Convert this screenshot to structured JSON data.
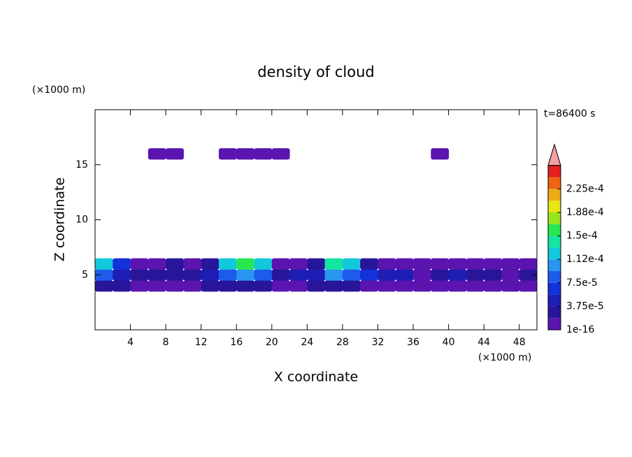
{
  "chart_data": {
    "type": "contourf",
    "title": "density of cloud",
    "x_label": "X coordinate",
    "y_label": "Z coordinate",
    "x_unit": "(×1000 m)",
    "y_unit": "(×1000 m)",
    "time_label": "t=86400 s",
    "xlim": [
      0,
      50
    ],
    "ylim": [
      0,
      20
    ],
    "xticks": [
      4,
      8,
      12,
      16,
      20,
      24,
      28,
      32,
      36,
      40,
      44,
      48
    ],
    "yticks": [
      5,
      10,
      15
    ],
    "x": [
      1,
      3,
      5,
      7,
      9,
      11,
      13,
      15,
      17,
      19,
      21,
      23,
      25,
      27,
      29,
      31,
      33,
      35,
      37,
      39,
      41,
      43,
      45,
      47,
      49
    ],
    "y": [
      4,
      5,
      6,
      16
    ],
    "z": [
      [
        3e-05,
        2e-05,
        1e-05,
        1e-05,
        1e-05,
        1e-05,
        2e-05,
        3e-05,
        3e-05,
        2e-05,
        1e-05,
        1e-05,
        2e-05,
        3e-05,
        2e-05,
        1e-05,
        1e-05,
        1e-05,
        5e-06,
        1e-05,
        1e-05,
        1e-05,
        1e-05,
        1e-05,
        1e-05
      ],
      [
        8e-05,
        5e-05,
        2e-05,
        3e-05,
        2e-05,
        2e-05,
        5e-05,
        9e-05,
        0.0001,
        8e-05,
        3e-05,
        4e-05,
        5e-05,
        0.0001,
        9e-05,
        6e-05,
        4e-05,
        5e-05,
        1e-05,
        2e-05,
        4e-05,
        3e-05,
        2e-05,
        1e-05,
        3e-05
      ],
      [
        0.00013,
        6e-05,
        1e-05,
        1e-05,
        2e-05,
        1e-05,
        3e-05,
        0.00013,
        0.00015,
        0.00012,
        1e-05,
        1e-05,
        2e-05,
        0.00014,
        0.00013,
        3e-05,
        1e-05,
        5e-06,
        1e-06,
        1e-06,
        1e-05,
        1e-05,
        5e-06,
        5e-06,
        5e-06
      ],
      [
        null,
        null,
        null,
        5e-06,
        5e-06,
        null,
        null,
        5e-06,
        5e-06,
        5e-06,
        5e-06,
        null,
        null,
        null,
        null,
        null,
        null,
        null,
        null,
        5e-06,
        null,
        null,
        null,
        null,
        null
      ]
    ],
    "levels": [
      1e-16,
      1.875e-05,
      3.75e-05,
      5.625e-05,
      7.5e-05,
      9.375e-05,
      0.0001125,
      0.00013125,
      0.00015,
      0.00016875,
      0.0001875,
      0.00020625,
      0.000225,
      0.00024375
    ],
    "colors": [
      "#5b14b0",
      "#28169a",
      "#1e1eb4",
      "#1432dc",
      "#1e5aeb",
      "#2896f0",
      "#14c8dc",
      "#14e6a0",
      "#28e650",
      "#96e61e",
      "#e6e614",
      "#f0aa14",
      "#f06414",
      "#e61e1e"
    ],
    "extend_color": "#f4a0a0",
    "colorbar_ticks": [
      {
        "value": 1e-16,
        "label": "1e-16"
      },
      {
        "value": 3.75e-05,
        "label": "3.75e-5"
      },
      {
        "value": 7.5e-05,
        "label": "7.5e-5"
      },
      {
        "value": 0.0001125,
        "label": "1.12e-4"
      },
      {
        "value": 0.00015,
        "label": "1.5e-4"
      },
      {
        "value": 0.0001875,
        "label": "1.88e-4"
      },
      {
        "value": 0.000225,
        "label": "2.25e-4"
      }
    ]
  }
}
